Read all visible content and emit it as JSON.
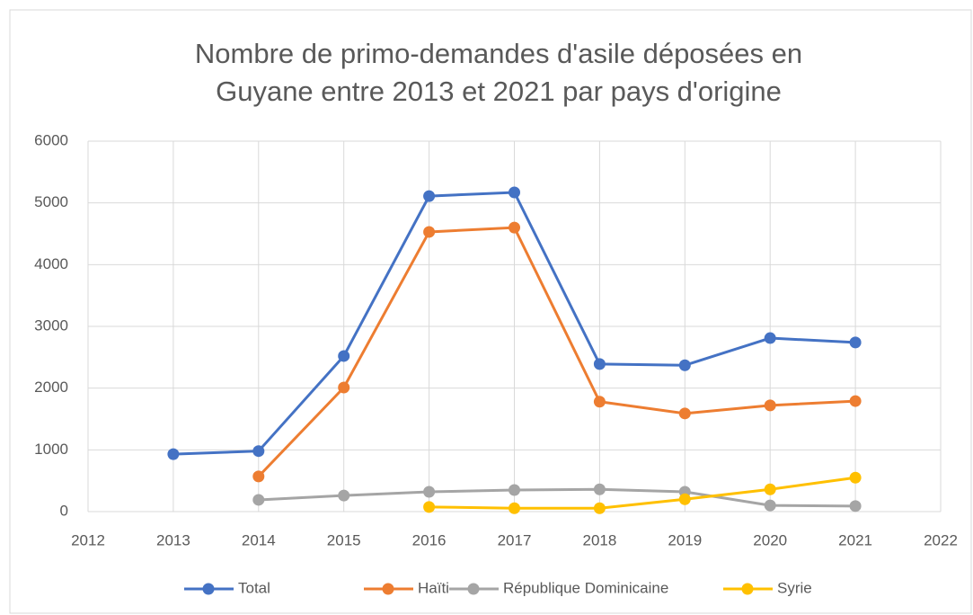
{
  "chart_data": {
    "type": "line",
    "title": [
      "Nombre de primo-demandes d'asile déposées en",
      "Guyane entre 2013 et 2021 par pays d'origine"
    ],
    "x": [
      2013,
      2014,
      2015,
      2016,
      2017,
      2018,
      2019,
      2020,
      2021
    ],
    "series": [
      {
        "name": "Total",
        "color": "#4472c4",
        "values": [
          930,
          980,
          2520,
          5110,
          5170,
          2390,
          2370,
          2810,
          2740
        ]
      },
      {
        "name": "Haïti",
        "color": "#ed7d31",
        "values": [
          null,
          570,
          2010,
          4530,
          4600,
          1780,
          1590,
          1720,
          1790
        ]
      },
      {
        "name": "République Dominicaine",
        "color": "#a5a5a5",
        "values": [
          null,
          190,
          260,
          320,
          350,
          360,
          320,
          100,
          90
        ]
      },
      {
        "name": "Syrie",
        "color": "#ffc000",
        "values": [
          null,
          null,
          null,
          75,
          55,
          55,
          200,
          360,
          550
        ]
      }
    ],
    "xlim": [
      2012,
      2022
    ],
    "xticks": [
      2012,
      2013,
      2014,
      2015,
      2016,
      2017,
      2018,
      2019,
      2020,
      2021,
      2022
    ],
    "ylim": [
      0,
      6000
    ],
    "yticks": [
      0,
      1000,
      2000,
      3000,
      4000,
      5000,
      6000
    ],
    "grid": true,
    "legend": "bottom"
  }
}
